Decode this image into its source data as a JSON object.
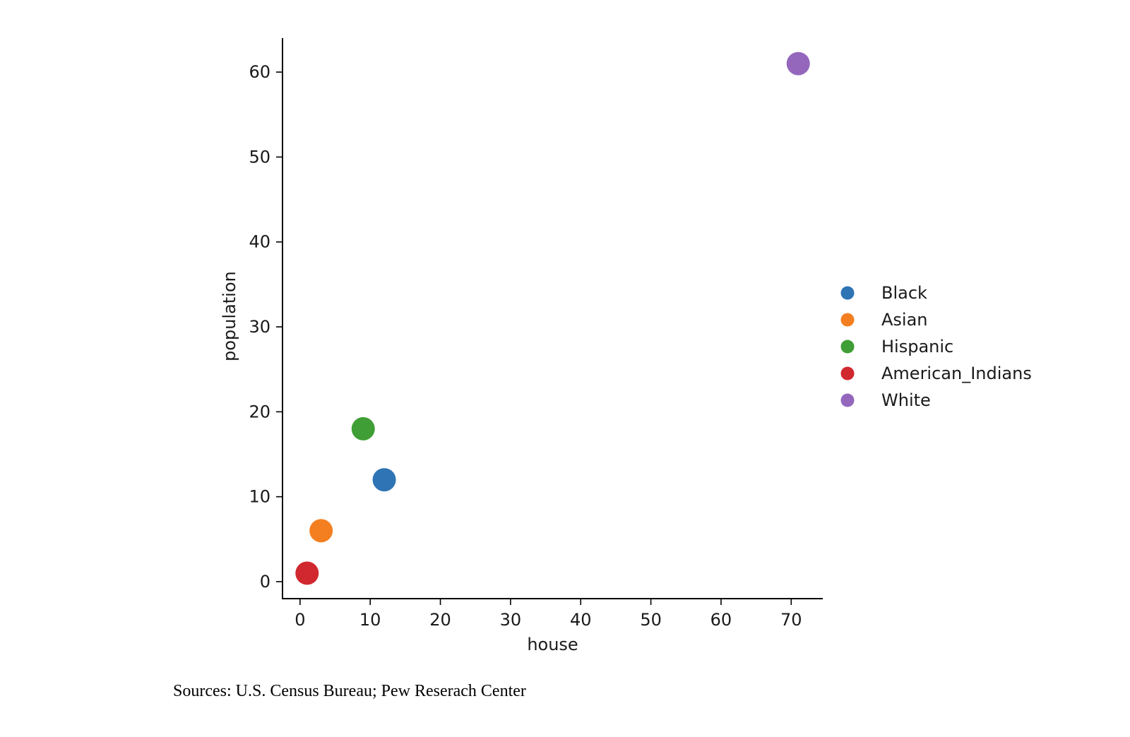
{
  "chart_data": {
    "type": "scatter",
    "title": "",
    "xlabel": "house",
    "ylabel": "population",
    "xlim": [
      -2.5,
      74.5
    ],
    "ylim": [
      -2,
      64
    ],
    "xticks": [
      0,
      10,
      20,
      30,
      40,
      50,
      60,
      70
    ],
    "yticks": [
      0,
      10,
      20,
      30,
      40,
      50,
      60
    ],
    "grid": false,
    "legend_position": "right",
    "series": [
      {
        "name": "Black",
        "color": "#2f74b5",
        "points": [
          {
            "x": 12,
            "y": 12
          }
        ]
      },
      {
        "name": "Asian",
        "color": "#f47f20",
        "points": [
          {
            "x": 3,
            "y": 6
          }
        ]
      },
      {
        "name": "Hispanic",
        "color": "#3f9e35",
        "points": [
          {
            "x": 9,
            "y": 18
          }
        ]
      },
      {
        "name": "American_Indians",
        "color": "#d0282e",
        "points": [
          {
            "x": 1,
            "y": 1
          }
        ]
      },
      {
        "name": "White",
        "color": "#9467bd",
        "points": [
          {
            "x": 71,
            "y": 61
          }
        ]
      }
    ]
  },
  "footer": {
    "source_text": "Sources: U.S. Census Bureau; Pew Reserach Center"
  }
}
